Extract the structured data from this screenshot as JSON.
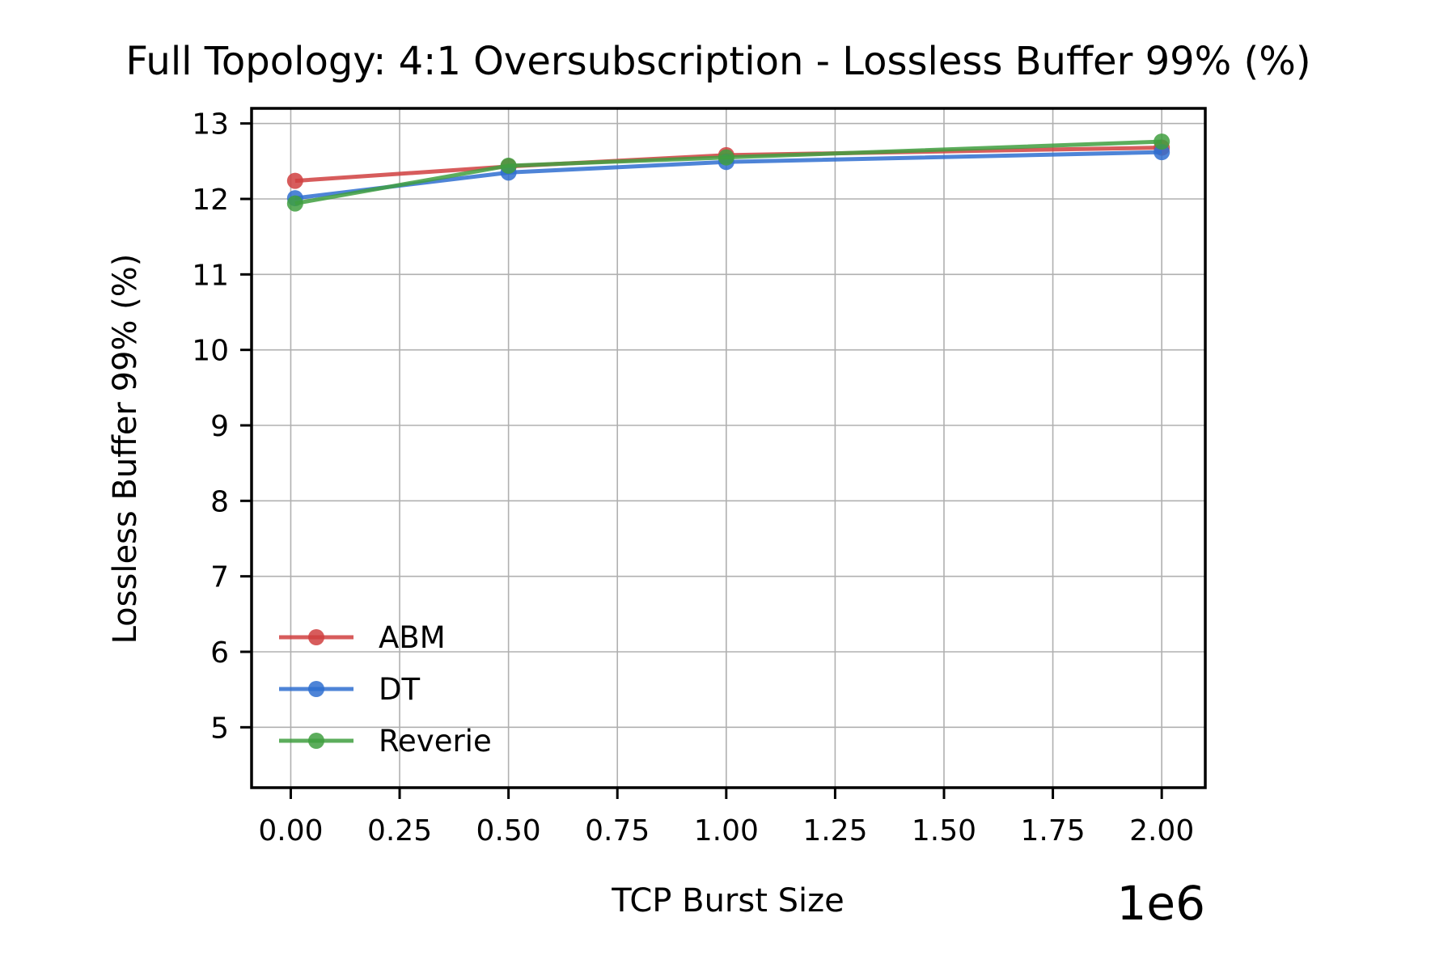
{
  "chart_data": {
    "type": "line",
    "title": "Full Topology: 4:1 Oversubscription - Lossless Buffer 99% (%)",
    "xlabel": "TCP Burst Size",
    "ylabel": "Lossless Buffer 99% (%)",
    "x_offset_label": "1e6",
    "xlim": [
      -0.09,
      2.1
    ],
    "ylim": [
      4.2,
      13.2
    ],
    "x_ticks": [
      0.0,
      0.25,
      0.5,
      0.75,
      1.0,
      1.25,
      1.5,
      1.75,
      2.0
    ],
    "x_tick_labels": [
      "0.00",
      "0.25",
      "0.50",
      "0.75",
      "1.00",
      "1.25",
      "1.50",
      "1.75",
      "2.00"
    ],
    "y_ticks": [
      5,
      6,
      7,
      8,
      9,
      10,
      11,
      12,
      13
    ],
    "y_tick_labels": [
      "5",
      "6",
      "7",
      "8",
      "9",
      "10",
      "11",
      "12",
      "13"
    ],
    "grid": true,
    "legend_position": "lower-left",
    "x": [
      0.01,
      0.5,
      1.0,
      2.0
    ],
    "series": [
      {
        "name": "ABM",
        "color": "#d04040",
        "values": [
          12.24,
          12.43,
          12.58,
          12.68
        ]
      },
      {
        "name": "DT",
        "color": "#2f6fd0",
        "values": [
          12.01,
          12.35,
          12.49,
          12.62
        ]
      },
      {
        "name": "Reverie",
        "color": "#3f9f3f",
        "values": [
          11.94,
          12.44,
          12.55,
          12.76
        ]
      }
    ]
  }
}
